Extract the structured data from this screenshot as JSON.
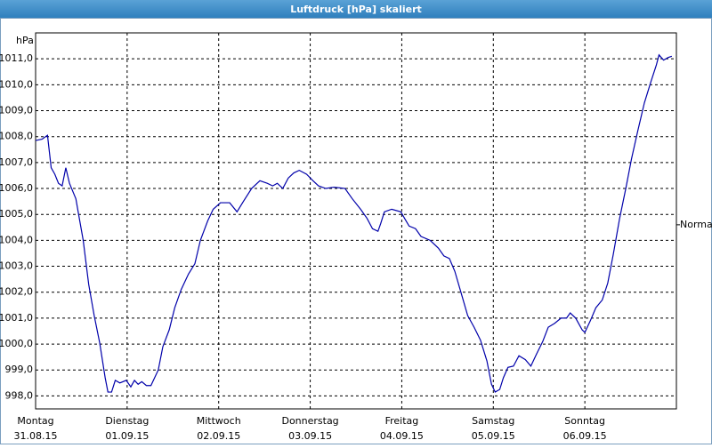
{
  "chart_data": {
    "type": "line",
    "title": "Luftdruck [hPa] skaliert",
    "y_unit": "hPa",
    "xlim": [
      0,
      7
    ],
    "xticks": [
      {
        "value": 0,
        "label": "Montag"
      },
      {
        "value": 1,
        "label": "Dienstag"
      },
      {
        "value": 2,
        "label": "Mittwoch"
      },
      {
        "value": 3,
        "label": "Donnerstag"
      },
      {
        "value": 4,
        "label": "Freitag"
      },
      {
        "value": 5,
        "label": "Samstag"
      },
      {
        "value": 6,
        "label": "Sonntag"
      }
    ],
    "xtick_dates": [
      "31.08.15",
      "01.09.15",
      "02.09.15",
      "03.09.15",
      "04.09.15",
      "05.09.15",
      "06.09.15"
    ],
    "ylim": [
      997.5,
      1012
    ],
    "yticks": [
      {
        "value": 998,
        "label": "998,0"
      },
      {
        "value": 999,
        "label": "999,0"
      },
      {
        "value": 1000,
        "label": "1000,0"
      },
      {
        "value": 1001,
        "label": "1001,0"
      },
      {
        "value": 1002,
        "label": "1002,0"
      },
      {
        "value": 1003,
        "label": "1003,0"
      },
      {
        "value": 1004,
        "label": "1004,0"
      },
      {
        "value": 1005,
        "label": "1005,0"
      },
      {
        "value": 1006,
        "label": "1006,0"
      },
      {
        "value": 1007,
        "label": "1007,0"
      },
      {
        "value": 1008,
        "label": "1008,0"
      },
      {
        "value": 1009,
        "label": "1009,0"
      },
      {
        "value": 1010,
        "label": "1010,0"
      },
      {
        "value": 1011,
        "label": "1011,0"
      }
    ],
    "grid": true,
    "annotations": [
      {
        "text": "Normal",
        "value": 1004.6
      }
    ],
    "series": [
      {
        "color": "#0000aa",
        "x": [
          0,
          0.07,
          0.13,
          0.17,
          0.21,
          0.25,
          0.29,
          0.33,
          0.37,
          0.44,
          0.47,
          0.52,
          0.58,
          0.64,
          0.7,
          0.76,
          0.79,
          0.83,
          0.87,
          0.92,
          0.99,
          1.04,
          1.08,
          1.12,
          1.16,
          1.21,
          1.26,
          1.34,
          1.39,
          1.46,
          1.52,
          1.59,
          1.67,
          1.74,
          1.8,
          1.88,
          1.94,
          2.02,
          2.12,
          2.2,
          2.27,
          2.36,
          2.45,
          2.53,
          2.59,
          2.64,
          2.7,
          2.76,
          2.82,
          2.88,
          2.96,
          3.03,
          3.09,
          3.17,
          3.26,
          3.38,
          3.46,
          3.55,
          3.62,
          3.68,
          3.74,
          3.77,
          3.81,
          3.89,
          3.99,
          4.03,
          4.08,
          4.15,
          4.21,
          4.31,
          4.4,
          4.46,
          4.52,
          4.58,
          4.65,
          4.72,
          4.79,
          4.86,
          4.93,
          4.98,
          5.02,
          5.07,
          5.11,
          5.16,
          5.22,
          5.28,
          5.35,
          5.41,
          5.47,
          5.54,
          5.6,
          5.67,
          5.74,
          5.8,
          5.84,
          5.9,
          5.97,
          6,
          6.06,
          6.12,
          6.19,
          6.25,
          6.31,
          6.38,
          6.45,
          6.51,
          6.58,
          6.65,
          6.72,
          6.78,
          6.81,
          6.86,
          6.91,
          6.95
        ],
        "values": [
          1007.85,
          1007.9,
          1008.05,
          1006.8,
          1006.55,
          1006.2,
          1006.1,
          1006.8,
          1006.2,
          1005.6,
          1005.0,
          1004.0,
          1002.3,
          1001.1,
          1000.05,
          998.7,
          998.15,
          998.15,
          998.6,
          998.5,
          998.6,
          998.35,
          998.6,
          998.45,
          998.55,
          998.4,
          998.4,
          999.0,
          999.9,
          1000.55,
          1001.4,
          1002.1,
          1002.7,
          1003.1,
          1004.0,
          1004.75,
          1005.2,
          1005.45,
          1005.45,
          1005.1,
          1005.5,
          1006.0,
          1006.3,
          1006.2,
          1006.1,
          1006.2,
          1006.0,
          1006.4,
          1006.6,
          1006.7,
          1006.55,
          1006.3,
          1006.1,
          1006.0,
          1006.05,
          1006.0,
          1005.6,
          1005.2,
          1004.85,
          1004.45,
          1004.35,
          1004.65,
          1005.1,
          1005.2,
          1005.1,
          1004.85,
          1004.55,
          1004.45,
          1004.15,
          1004.0,
          1003.7,
          1003.4,
          1003.3,
          1002.8,
          1001.95,
          1001.1,
          1000.65,
          1000.15,
          999.35,
          998.45,
          998.15,
          998.25,
          998.7,
          999.1,
          999.15,
          999.55,
          999.4,
          999.15,
          999.6,
          1000.1,
          1000.65,
          1000.8,
          1001.0,
          1001.0,
          1001.2,
          1001.0,
          1000.55,
          1000.45,
          1000.9,
          1001.4,
          1001.7,
          1002.35,
          1003.45,
          1004.85,
          1006.05,
          1007.15,
          1008.25,
          1009.3,
          1010.1,
          1010.75,
          1011.15,
          1010.95,
          1011.05,
          1011.1
        ]
      }
    ]
  }
}
